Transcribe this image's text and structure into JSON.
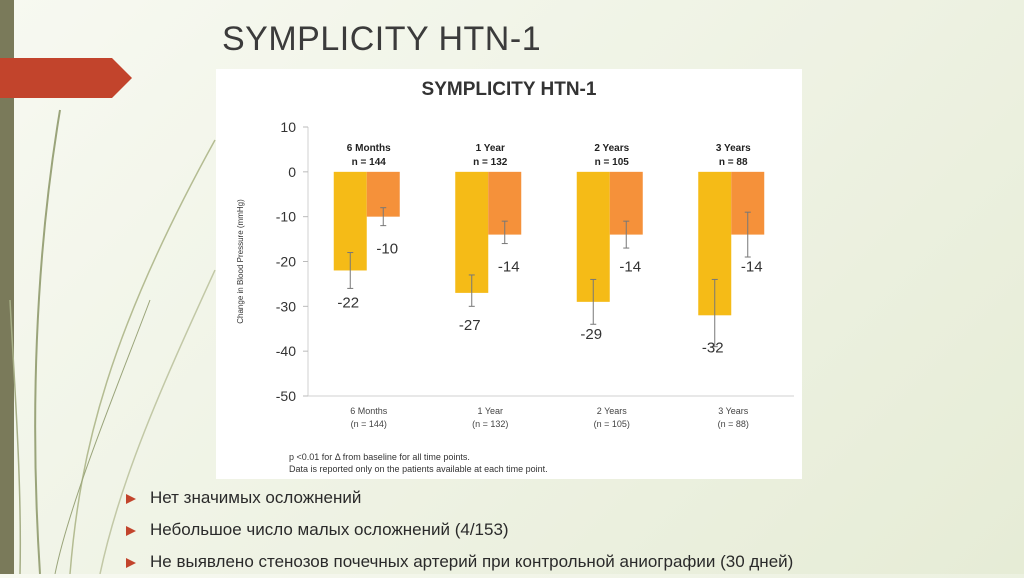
{
  "slide": {
    "title": "SYMPLICITY HTN-1",
    "bullets": [
      "Нет значимых осложнений",
      "Небольшое число малых осложнений (4/153)",
      "Не выявлено стенозов почечных артерий при контрольной аниографии (30 дней)"
    ],
    "colors": {
      "accent": "#c2442c",
      "strip": "#7a7a5a",
      "bar_primary": "#f5bb17",
      "bar_secondary": "#f5913a"
    }
  },
  "chart_data": {
    "type": "bar",
    "title": "SYMPLICITY HTN-1",
    "ylabel": "Change in Blood Pressure (mmHg)",
    "ylim": [
      -50,
      10
    ],
    "yticks": [
      10,
      0,
      -10,
      -20,
      -30,
      -40,
      -50
    ],
    "categories": [
      "6 Months\n(n = 144)",
      "1 Year\n(n = 132)",
      "2 Years\n(n = 105)",
      "3 Years\n(n = 88)"
    ],
    "category_labels": [
      {
        "line1": "6 Months",
        "line2": "(n = 144)"
      },
      {
        "line1": "1 Year",
        "line2": "(n = 132)"
      },
      {
        "line1": "2 Years",
        "line2": "(n = 105)"
      },
      {
        "line1": "3 Years",
        "line2": "(n = 88)"
      }
    ],
    "group_headers": [
      {
        "line1": "6 Months",
        "line2": "n = 144"
      },
      {
        "line1": "1 Year",
        "line2": "n = 132"
      },
      {
        "line1": "2 Years",
        "line2": "n = 105"
      },
      {
        "line1": "3 Years",
        "line2": "n = 88"
      }
    ],
    "series": [
      {
        "values": [
          -22,
          -27,
          -29,
          -32
        ],
        "error_low": [
          -26,
          -30,
          -34,
          -39
        ],
        "error_high": [
          -18,
          -23,
          -24,
          -24
        ],
        "color": "#f5bb17"
      },
      {
        "values": [
          -10,
          -14,
          -14,
          -14
        ],
        "error_low": [
          -12,
          -16,
          -17,
          -19
        ],
        "error_high": [
          -8,
          -11,
          -11,
          -9
        ],
        "color": "#f5913a"
      }
    ],
    "footnote_line1": "p <0.01 for Δ from baseline for all time points.",
    "footnote_line2": "Data is reported only on the patients available at each time point."
  }
}
